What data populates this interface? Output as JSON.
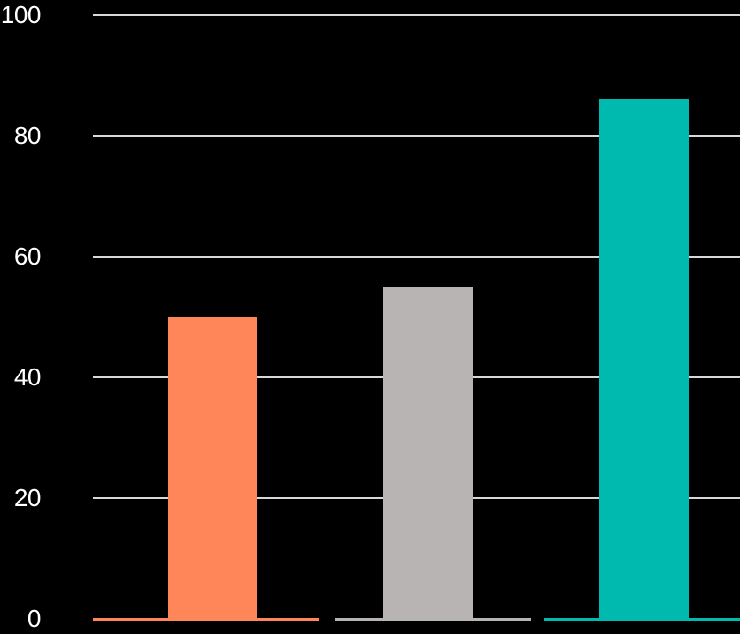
{
  "chart_data": {
    "type": "bar",
    "title": "",
    "xlabel": "",
    "ylabel": "",
    "values": [
      50,
      55,
      86
    ],
    "bar_colors": [
      "#FF8659",
      "#B8B4B3",
      "#00B9AF"
    ],
    "yticks": [
      "0",
      "20",
      "40",
      "60",
      "80",
      "100"
    ],
    "ytick_values": [
      0,
      20,
      40,
      60,
      80,
      100
    ],
    "ylim": [
      0,
      100
    ],
    "grid": true,
    "legend": false,
    "x_axis_category_labels_visible": false,
    "background_color": "#000000",
    "gridline_color": "#D8D8D8",
    "tick_label_color": "#FFFFFF",
    "zero_line_style": "colored-per-category-segments",
    "zero_line_segment_colors": [
      "#FF8659",
      "#B8B4B3",
      "#00B9AF"
    ]
  }
}
